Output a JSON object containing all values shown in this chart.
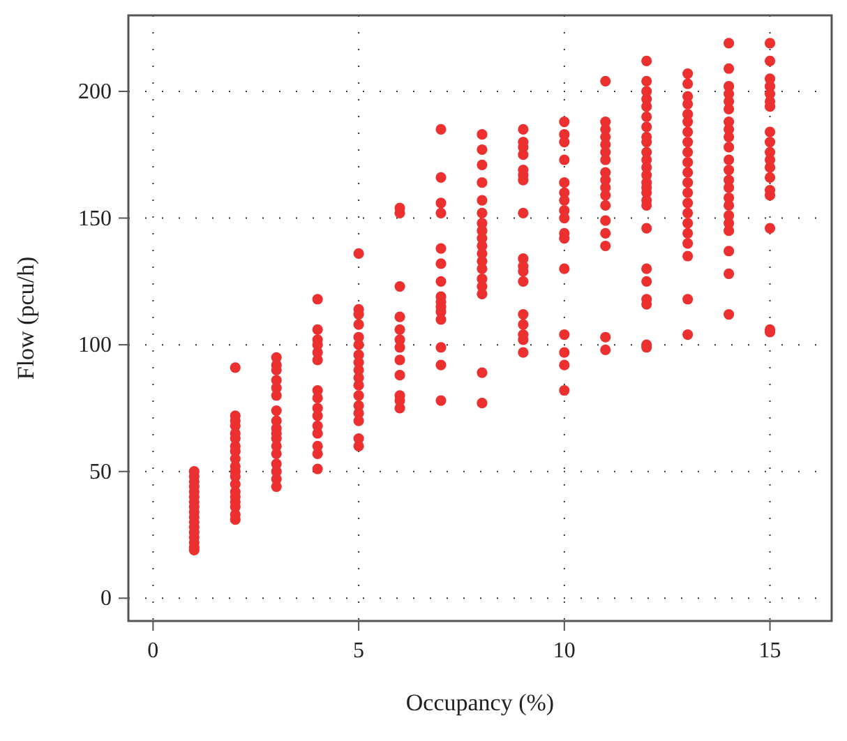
{
  "chart_data": {
    "type": "scatter",
    "xlabel": "Occupancy (%)",
    "ylabel": "Flow (pcu/h)",
    "xlim": [
      -0.6,
      16.5
    ],
    "ylim": [
      -9,
      230
    ],
    "xticks": [
      0,
      5,
      10,
      15
    ],
    "yticks": [
      0,
      50,
      100,
      150,
      200
    ],
    "grid": true,
    "marker": "circle",
    "series": [
      {
        "color": "#ec3030",
        "x": [
          1,
          1,
          1,
          1,
          1,
          1,
          1,
          1,
          1,
          1,
          1,
          1,
          1,
          1,
          1,
          1,
          1,
          2,
          2,
          2,
          2,
          2,
          2,
          2,
          2,
          2,
          2,
          2,
          2,
          2,
          2,
          2,
          2,
          2,
          2,
          2,
          3,
          3,
          3,
          3,
          3,
          3,
          3,
          3,
          3,
          3,
          3,
          3,
          3,
          3,
          3,
          3,
          3,
          4,
          4,
          4,
          4,
          4,
          4,
          4,
          4,
          4,
          4,
          4,
          4,
          4,
          4,
          4,
          5,
          5,
          5,
          5,
          5,
          5,
          5,
          5,
          5,
          5,
          5,
          5,
          5,
          5,
          5,
          5,
          5,
          6,
          6,
          6,
          6,
          6,
          6,
          6,
          6,
          6,
          6,
          6,
          6,
          7,
          7,
          7,
          7,
          7,
          7,
          7,
          7,
          7,
          7,
          7,
          7,
          7,
          7,
          7,
          8,
          8,
          8,
          8,
          8,
          8,
          8,
          8,
          8,
          8,
          8,
          8,
          8,
          8,
          8,
          8,
          8,
          8,
          9,
          9,
          9,
          9,
          9,
          9,
          9,
          9,
          9,
          9,
          9,
          9,
          9,
          9,
          9,
          9,
          9,
          10,
          10,
          10,
          10,
          10,
          10,
          10,
          10,
          10,
          10,
          10,
          10,
          10,
          10,
          10,
          10,
          11,
          11,
          11,
          11,
          11,
          11,
          11,
          11,
          11,
          11,
          11,
          11,
          11,
          11,
          11,
          11,
          11,
          12,
          12,
          12,
          12,
          12,
          12,
          12,
          12,
          12,
          12,
          12,
          12,
          12,
          12,
          12,
          12,
          12,
          12,
          12,
          12,
          12,
          12,
          12,
          12,
          12,
          13,
          13,
          13,
          13,
          13,
          13,
          13,
          13,
          13,
          13,
          13,
          13,
          13,
          13,
          13,
          13,
          13,
          13,
          13,
          13,
          13,
          14,
          14,
          14,
          14,
          14,
          14,
          14,
          14,
          14,
          14,
          14,
          14,
          14,
          14,
          14,
          14,
          14,
          14,
          14,
          14,
          14,
          14,
          15,
          15,
          15,
          15,
          15,
          15,
          15,
          15,
          15,
          15,
          15,
          15,
          15,
          15,
          15,
          15,
          15,
          15
        ],
        "values": [
          19,
          20,
          22,
          24,
          26,
          28,
          30,
          32,
          34,
          36,
          38,
          40,
          42,
          44,
          46,
          48,
          50,
          31,
          33,
          36,
          38,
          40,
          42,
          45,
          48,
          50,
          52,
          55,
          58,
          60,
          63,
          65,
          68,
          70,
          72,
          91,
          44,
          47,
          50,
          53,
          57,
          60,
          63,
          65,
          67,
          70,
          74,
          80,
          83,
          86,
          90,
          92,
          95,
          51,
          57,
          60,
          65,
          68,
          72,
          75,
          79,
          82,
          94,
          97,
          100,
          102,
          106,
          118,
          60,
          63,
          70,
          73,
          76,
          80,
          84,
          87,
          90,
          93,
          96,
          100,
          103,
          108,
          112,
          114,
          136,
          154,
          152,
          123,
          111,
          106,
          102,
          99,
          94,
          88,
          80,
          78,
          75,
          185,
          166,
          156,
          152,
          138,
          132,
          125,
          119,
          117,
          115,
          113,
          110,
          99,
          92,
          78,
          183,
          177,
          171,
          164,
          157,
          152,
          148,
          145,
          142,
          139,
          136,
          133,
          130,
          126,
          123,
          120,
          89,
          77,
          185,
          180,
          178,
          175,
          169,
          167,
          165,
          152,
          134,
          131,
          129,
          125,
          112,
          108,
          104,
          102,
          97,
          188,
          183,
          180,
          173,
          164,
          160,
          157,
          153,
          150,
          144,
          142,
          130,
          104,
          97,
          92,
          82,
          204,
          188,
          185,
          182,
          179,
          176,
          173,
          168,
          165,
          162,
          159,
          155,
          149,
          144,
          139,
          103,
          98,
          212,
          204,
          200,
          197,
          194,
          190,
          186,
          182,
          180,
          176,
          173,
          170,
          167,
          164,
          162,
          160,
          157,
          155,
          146,
          130,
          125,
          118,
          116,
          100,
          99,
          207,
          203,
          198,
          195,
          191,
          188,
          184,
          180,
          176,
          172,
          168,
          164,
          160,
          156,
          152,
          148,
          144,
          140,
          135,
          118,
          104,
          219,
          209,
          202,
          199,
          196,
          193,
          188,
          185,
          182,
          178,
          173,
          169,
          165,
          162,
          158,
          155,
          151,
          148,
          145,
          137,
          128,
          112,
          219,
          212,
          205,
          202,
          199,
          196,
          194,
          184,
          180,
          176,
          173,
          170,
          166,
          161,
          159,
          146,
          106,
          105
        ]
      }
    ]
  }
}
